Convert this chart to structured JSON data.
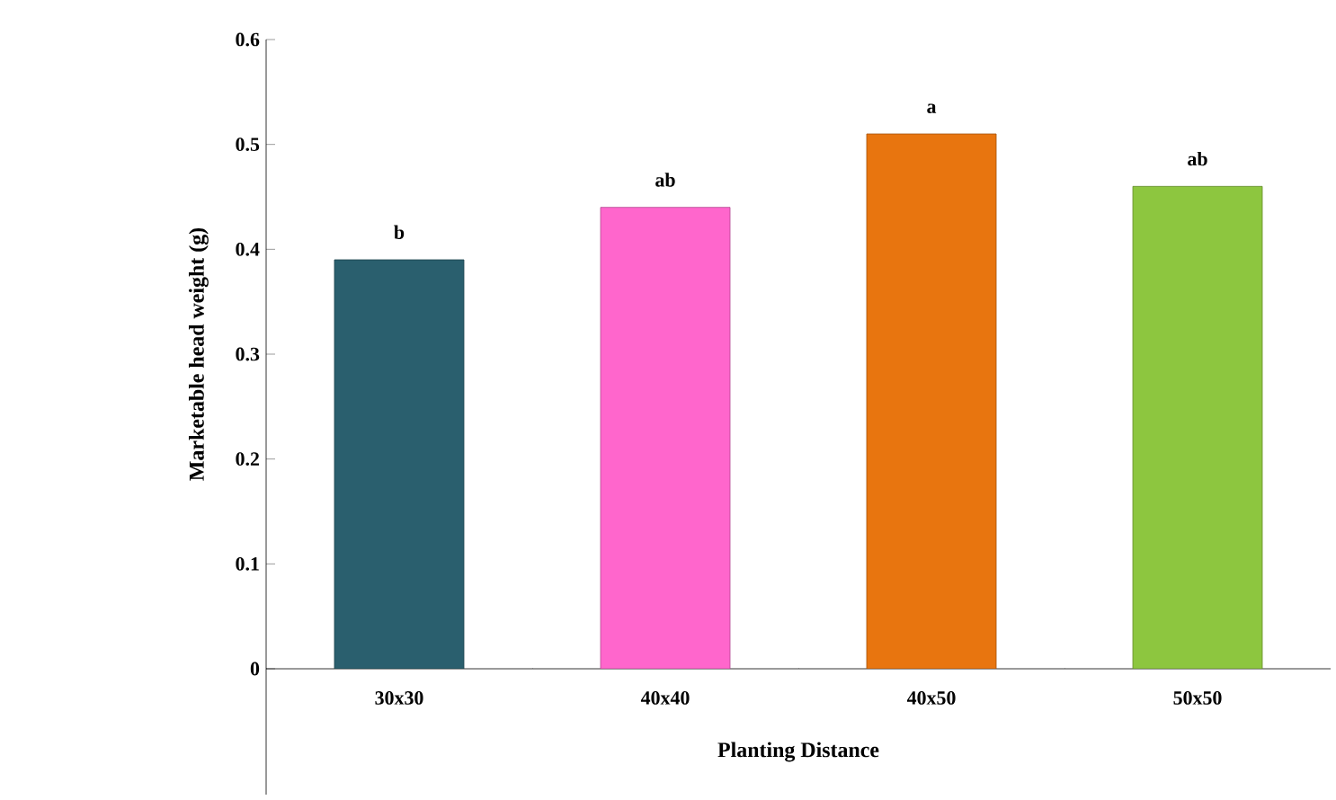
{
  "chart_data": {
    "type": "bar",
    "xlabel": "Planting Distance",
    "ylabel": "Marketable head weight (g)",
    "categories": [
      "30x30",
      "40x40",
      "40x50",
      "50x50"
    ],
    "values": [
      0.39,
      0.44,
      0.51,
      0.46
    ],
    "colors": [
      "#2a5f6e",
      "#ff66cc",
      "#e8750f",
      "#8dc63f"
    ],
    "ylim": [
      0,
      0.6
    ],
    "yticks": [
      0,
      0.1,
      0.2,
      0.3,
      0.4,
      0.5,
      0.6
    ],
    "annotations": [
      {
        "text": "b",
        "x": "30x30",
        "y": 0.39
      },
      {
        "text": "ab",
        "x": "40x40",
        "y": 0.44
      },
      {
        "text": "a",
        "x": "40x50",
        "y": 0.51
      },
      {
        "text": "ab",
        "x": "50x50",
        "y": 0.46
      }
    ],
    "grid": false
  }
}
